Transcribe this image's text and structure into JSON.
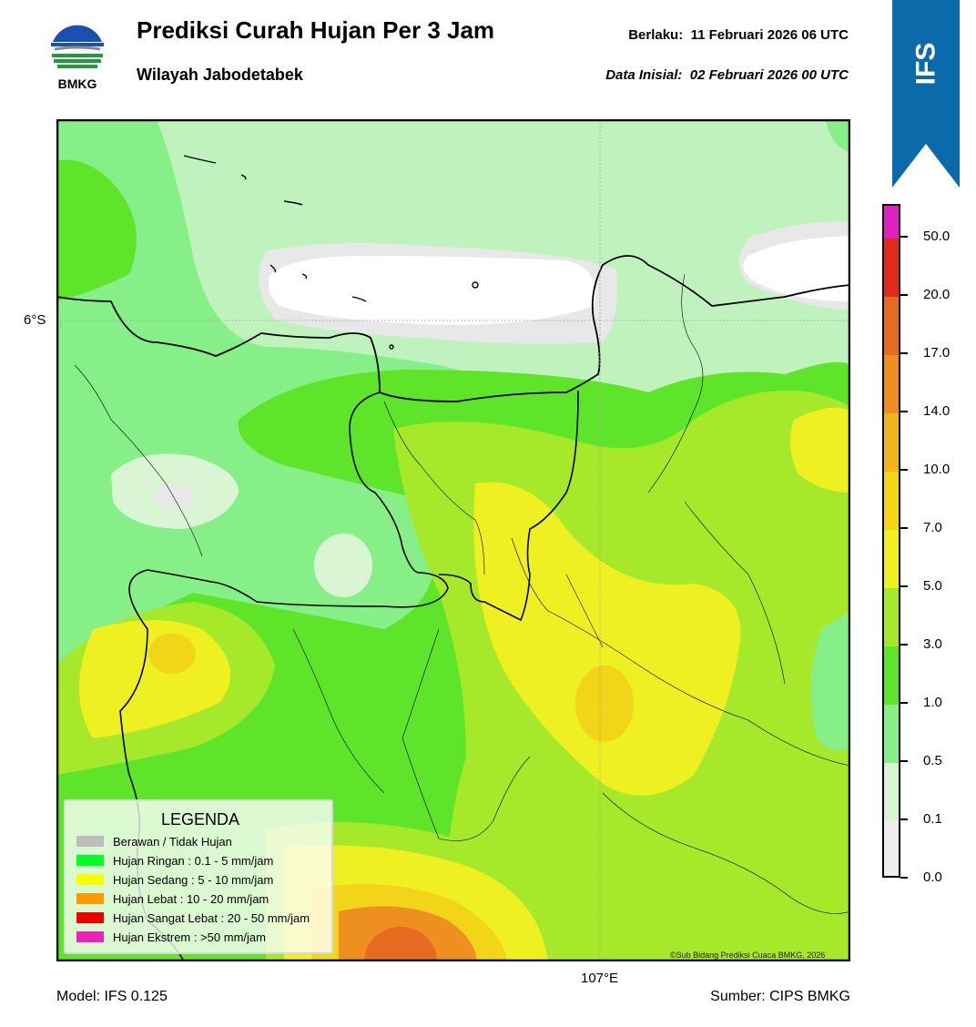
{
  "header": {
    "title": "Prediksi Curah Hujan Per 3 Jam",
    "subtitle": "Wilayah Jabodetabek",
    "valid_label": "Berlaku:",
    "valid_value": "11 Februari 2026 06 UTC",
    "init_label": "Data Inisial:",
    "init_value": "02 Februari 2026 00 UTC",
    "logo_text": "BMKG",
    "badge": "IFS"
  },
  "map": {
    "lat_label": "6°S",
    "lon_label": "107°E",
    "credit": "©Sub Bidang Prediksi Cuaca BMKG, 2026"
  },
  "legend": {
    "title": "LEGENDA",
    "items": [
      {
        "label": "Berawan / Tidak Hujan",
        "color": "#bdbdbd"
      },
      {
        "label": "Hujan Ringan : 0.1 - 5 mm/jam",
        "color": "#00ff22"
      },
      {
        "label": "Hujan Sedang : 5 - 10 mm/jam",
        "color": "#f5ff00"
      },
      {
        "label": "Hujan Lebat : 10 - 20 mm/jam",
        "color": "#ff9900"
      },
      {
        "label": "Hujan Sangat Lebat : 20 - 50 mm/jam",
        "color": "#ee0000"
      },
      {
        "label": "Hujan Ekstrem : >50 mm/jam",
        "color": "#ee22bb"
      }
    ]
  },
  "colorbar": {
    "labels": [
      "0.0",
      "0.1",
      "0.5",
      "1.0",
      "3.0",
      "5.0",
      "7.0",
      "10.0",
      "14.0",
      "17.0",
      "20.0",
      "50.0"
    ],
    "colors": [
      "#efefef",
      "#d9f5d4",
      "#86ef87",
      "#5ee52a",
      "#a6e82a",
      "#eef022",
      "#f2d418",
      "#f0b41c",
      "#ee9020",
      "#e66a20",
      "#e22a1a",
      "#e020c0"
    ]
  },
  "footer": {
    "model": "Model: IFS 0.125",
    "source": "Sumber: CIPS BMKG"
  }
}
